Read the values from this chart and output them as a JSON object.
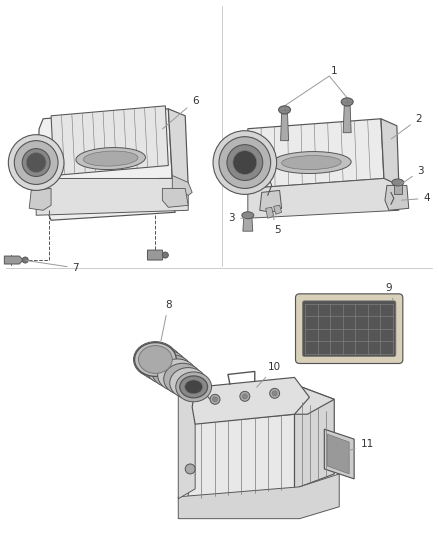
{
  "bg_color": "#ffffff",
  "line_color": "#555555",
  "label_color": "#333333",
  "font_size": 7.5,
  "figsize": [
    4.38,
    5.33
  ],
  "dpi": 100
}
